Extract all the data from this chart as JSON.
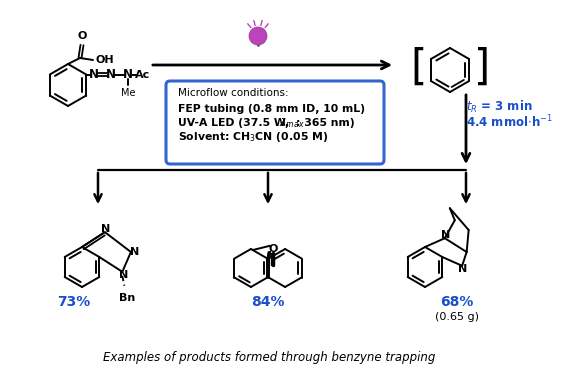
{
  "title": "Examples of products formed through benzyne trapping",
  "box_text_line1": "FEP tubing (0.8 mm ID, 10 mL)",
  "box_text_line2_a": "UV-A LED (37.5 W, ",
  "box_text_line2_b": ": 365 nm)",
  "box_text_line3_a": "Solvent: CH",
  "box_text_line3_b": "CN (0.05 M)",
  "microflow_label": "Microflow conditions:",
  "tr_label": "$t_R$ = 3 min",
  "rate_label": "4.4 mmol·h$^{-1}$",
  "yield1": "73%",
  "yield2": "84%",
  "yield3": "68%",
  "yield3_sub": "(0.65 g)",
  "blue": "#1a4fcc",
  "box_border": "#3366cc",
  "bg": "#ffffff"
}
